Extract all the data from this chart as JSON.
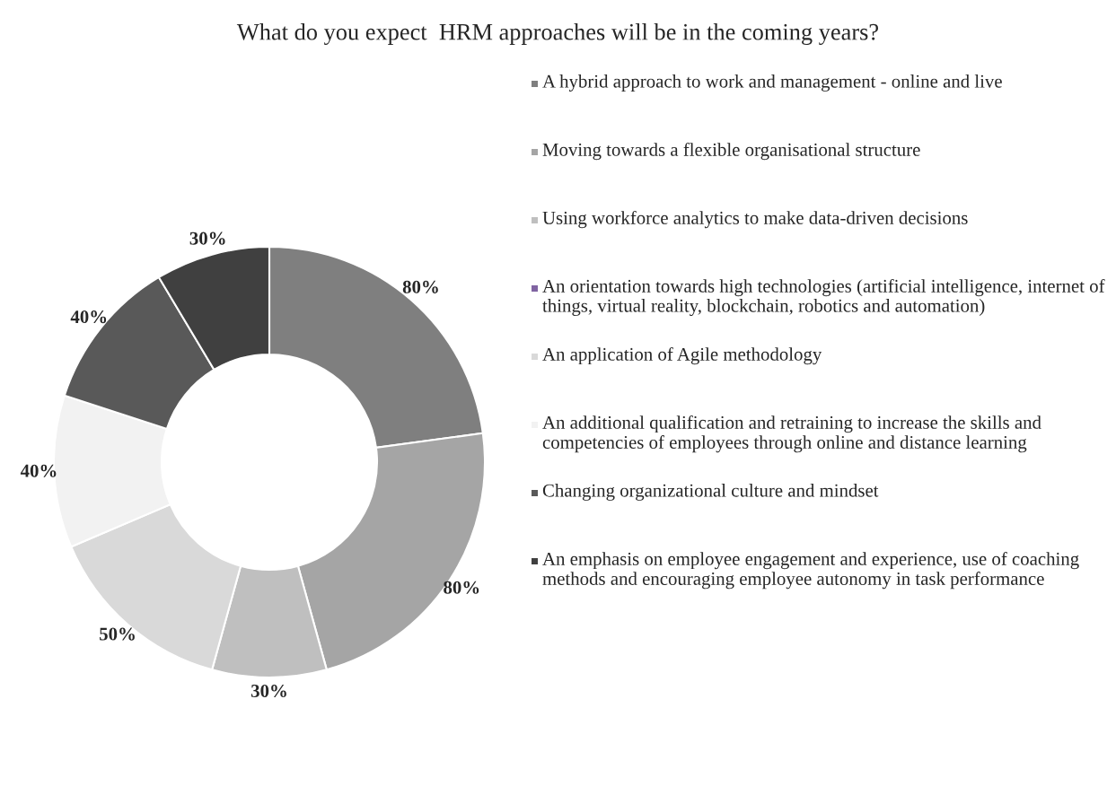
{
  "chart_data": {
    "type": "donut",
    "title": "What do you expect  HRM approaches will be in the coming years?",
    "categories": [
      "A hybrid approach to work and management - online and live",
      "Moving towards a flexible organisational structure",
      "Using workforce analytics to make data-driven decisions",
      "An orientation towards high technologies (artificial intelligence, internet of things, virtual reality, blockchain, robotics and automation)",
      "An application of Agile methodology",
      "An additional qualification and retraining to increase the skills and competencies of employees through online and distance learning",
      "Changing organizational culture and mindset",
      "An emphasis on employee engagement and experience, use of coaching methods and encouraging employee autonomy in task performance"
    ],
    "values": [
      80,
      80,
      30,
      null,
      50,
      40,
      40,
      30
    ],
    "value_labels": [
      "80%",
      "80%",
      "30%",
      null,
      "50%",
      "40%",
      "40%",
      "30%"
    ],
    "colors": [
      "#7f7f7f",
      "#a5a5a5",
      "#bfbfbf",
      "#8064a2",
      "#d9d9d9",
      "#f2f2f2",
      "#595959",
      "#404040"
    ],
    "legend": "right"
  }
}
